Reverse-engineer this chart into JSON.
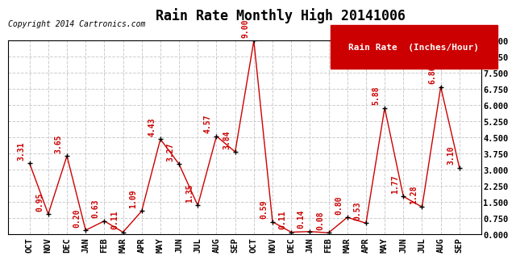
{
  "title": "Rain Rate Monthly High 20141006",
  "copyright": "Copyright 2014 Cartronics.com",
  "legend_label": "Rain Rate  (Inches/Hour)",
  "months": [
    "OCT",
    "NOV",
    "DEC",
    "JAN",
    "FEB",
    "MAR",
    "APR",
    "MAY",
    "JUN",
    "JUL",
    "AUG",
    "SEP",
    "OCT",
    "NOV",
    "DEC",
    "JAN",
    "FEB",
    "MAR",
    "APR",
    "MAY",
    "JUN",
    "JUL",
    "AUG",
    "SEP"
  ],
  "values": [
    3.31,
    0.95,
    3.65,
    0.2,
    0.63,
    0.11,
    1.09,
    4.43,
    3.27,
    1.35,
    4.57,
    3.84,
    9.0,
    0.59,
    0.11,
    0.14,
    0.08,
    0.8,
    0.53,
    5.88,
    1.77,
    1.28,
    6.86,
    3.1
  ],
  "line_color": "#cc0000",
  "marker_color": "#000000",
  "background_color": "#ffffff",
  "grid_color": "#cccccc",
  "title_color": "#000000",
  "copyright_color": "#000000",
  "label_color": "#cc0000",
  "legend_bg": "#cc0000",
  "legend_text_color": "#ffffff",
  "ylim": [
    0.0,
    9.0
  ],
  "yticks": [
    0.0,
    0.75,
    1.5,
    2.25,
    3.0,
    3.75,
    4.5,
    5.25,
    6.0,
    6.75,
    7.5,
    8.25,
    9.0
  ],
  "title_fontsize": 12,
  "copyright_fontsize": 7,
  "label_fontsize": 7,
  "tick_fontsize": 7.5,
  "legend_fontsize": 8
}
